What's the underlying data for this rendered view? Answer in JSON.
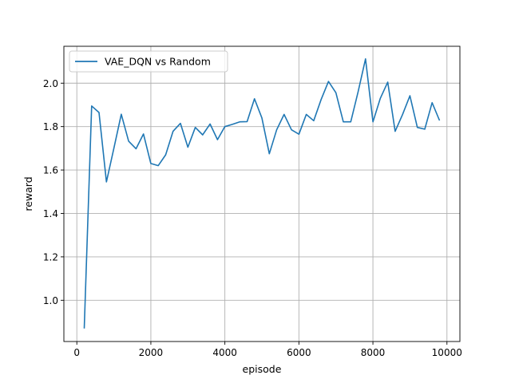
{
  "chart_data": {
    "type": "line",
    "title": "",
    "xlabel": "episode",
    "ylabel": "reward",
    "xlim": [
      -350,
      10350
    ],
    "ylim": [
      0.81,
      2.17
    ],
    "grid": true,
    "legend": {
      "position": "top-left"
    },
    "xticks": [
      {
        "value": 0,
        "label": "0"
      },
      {
        "value": 2000,
        "label": "2000"
      },
      {
        "value": 4000,
        "label": "4000"
      },
      {
        "value": 6000,
        "label": "6000"
      },
      {
        "value": 8000,
        "label": "8000"
      },
      {
        "value": 10000,
        "label": "10000"
      }
    ],
    "yticks": [
      {
        "value": 1.0,
        "label": "1.0"
      },
      {
        "value": 1.2,
        "label": "1.2"
      },
      {
        "value": 1.4,
        "label": "1.4"
      },
      {
        "value": 1.6,
        "label": "1.6"
      },
      {
        "value": 1.8,
        "label": "1.8"
      },
      {
        "value": 2.0,
        "label": "2.0"
      }
    ],
    "series": [
      {
        "name": "VAE_DQN vs Random",
        "color": "#1f77b4",
        "x": [
          200,
          400,
          600,
          800,
          1000,
          1200,
          1400,
          1600,
          1800,
          2000,
          2200,
          2400,
          2600,
          2800,
          3000,
          3200,
          3400,
          3600,
          3800,
          4000,
          4200,
          4400,
          4600,
          4800,
          5000,
          5200,
          5400,
          5600,
          5800,
          6000,
          6200,
          6400,
          6600,
          6800,
          7000,
          7200,
          7400,
          7600,
          7800,
          8000,
          8200,
          8400,
          8600,
          8800,
          9000,
          9200,
          9400,
          9600,
          9800
        ],
        "y": [
          0.87,
          1.895,
          1.865,
          1.545,
          1.7,
          1.857,
          1.733,
          1.698,
          1.766,
          1.63,
          1.62,
          1.67,
          1.778,
          1.815,
          1.705,
          1.796,
          1.762,
          1.812,
          1.74,
          1.8,
          1.81,
          1.822,
          1.823,
          1.928,
          1.84,
          1.675,
          1.785,
          1.856,
          1.785,
          1.765,
          1.856,
          1.827,
          1.925,
          2.008,
          1.956,
          1.822,
          1.822,
          1.96,
          2.112,
          1.822,
          1.93,
          2.005,
          1.778,
          1.855,
          1.942,
          1.796,
          1.788,
          1.91,
          1.828
        ]
      }
    ]
  }
}
